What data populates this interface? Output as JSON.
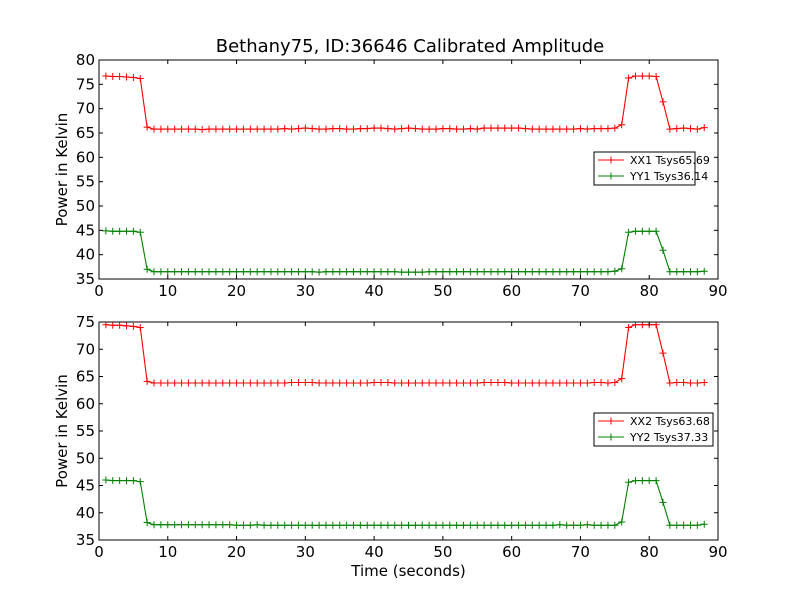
{
  "title": "Bethany75, ID:36646 Calibrated Amplitude",
  "colors": {
    "xx": "#ff0000",
    "yy": "#008000",
    "axis": "#000000"
  },
  "chart_data": [
    {
      "type": "line",
      "ylabel": "Power in Kelvin",
      "xlabel": "",
      "xlim": [
        0,
        90
      ],
      "ylim": [
        35,
        80
      ],
      "xticks": [
        0,
        10,
        20,
        30,
        40,
        50,
        60,
        70,
        80,
        90
      ],
      "yticks": [
        35,
        40,
        45,
        50,
        55,
        60,
        65,
        70,
        75,
        80
      ],
      "legend_position": "center-right",
      "x": [
        1,
        2,
        3,
        4,
        5,
        6,
        7,
        8,
        9,
        10,
        11,
        12,
        13,
        14,
        15,
        16,
        17,
        18,
        19,
        20,
        21,
        22,
        23,
        24,
        25,
        26,
        27,
        28,
        29,
        30,
        31,
        32,
        33,
        34,
        35,
        36,
        37,
        38,
        39,
        40,
        41,
        42,
        43,
        44,
        45,
        46,
        47,
        48,
        49,
        50,
        51,
        52,
        53,
        54,
        55,
        56,
        57,
        58,
        59,
        60,
        61,
        62,
        63,
        64,
        65,
        66,
        67,
        68,
        69,
        70,
        71,
        72,
        73,
        74,
        75,
        76,
        77,
        78,
        79,
        80,
        81,
        82,
        83,
        84,
        85,
        86,
        87,
        88
      ],
      "series": [
        {
          "name": "XX1 Tsys65.69",
          "color": "#ff0000",
          "values": [
            76.7,
            76.6,
            76.6,
            76.5,
            76.4,
            76.2,
            66.2,
            65.8,
            65.8,
            65.8,
            65.8,
            65.8,
            65.8,
            65.8,
            65.7,
            65.8,
            65.8,
            65.8,
            65.8,
            65.8,
            65.8,
            65.8,
            65.8,
            65.8,
            65.8,
            65.8,
            65.9,
            65.8,
            65.9,
            66.0,
            65.9,
            65.8,
            65.8,
            65.9,
            65.9,
            65.8,
            65.8,
            65.9,
            65.9,
            66.0,
            66.0,
            65.9,
            65.8,
            65.9,
            66.0,
            65.9,
            65.8,
            65.8,
            65.8,
            65.9,
            65.9,
            65.8,
            65.8,
            65.9,
            65.8,
            66.0,
            66.0,
            66.0,
            66.0,
            66.0,
            66.0,
            65.9,
            65.8,
            65.8,
            65.8,
            65.8,
            65.8,
            65.8,
            65.8,
            65.9,
            65.8,
            65.9,
            65.9,
            65.9,
            66.0,
            66.7,
            76.3,
            76.7,
            76.7,
            76.7,
            76.6,
            71.4,
            65.8,
            65.9,
            66.0,
            65.9,
            65.8,
            66.1
          ]
        },
        {
          "name": "YY1 Tsys36.14",
          "color": "#008000",
          "values": [
            44.9,
            44.8,
            44.8,
            44.8,
            44.8,
            44.6,
            37.0,
            36.5,
            36.5,
            36.5,
            36.5,
            36.5,
            36.5,
            36.5,
            36.5,
            36.5,
            36.5,
            36.5,
            36.5,
            36.5,
            36.5,
            36.5,
            36.5,
            36.5,
            36.5,
            36.5,
            36.5,
            36.5,
            36.5,
            36.5,
            36.5,
            36.4,
            36.5,
            36.5,
            36.5,
            36.5,
            36.5,
            36.5,
            36.5,
            36.5,
            36.5,
            36.5,
            36.5,
            36.4,
            36.4,
            36.4,
            36.4,
            36.5,
            36.5,
            36.5,
            36.5,
            36.5,
            36.5,
            36.5,
            36.5,
            36.5,
            36.5,
            36.5,
            36.5,
            36.5,
            36.5,
            36.5,
            36.5,
            36.5,
            36.5,
            36.5,
            36.5,
            36.5,
            36.5,
            36.5,
            36.5,
            36.5,
            36.5,
            36.5,
            36.6,
            37.1,
            44.6,
            44.8,
            44.8,
            44.8,
            44.8,
            40.9,
            36.5,
            36.5,
            36.5,
            36.5,
            36.5,
            36.6
          ]
        }
      ]
    },
    {
      "type": "line",
      "ylabel": "Power in Kelvin",
      "xlabel": "Time (seconds)",
      "xlim": [
        0,
        90
      ],
      "ylim": [
        35,
        75
      ],
      "xticks": [
        0,
        10,
        20,
        30,
        40,
        50,
        60,
        70,
        80,
        90
      ],
      "yticks": [
        35,
        40,
        45,
        50,
        55,
        60,
        65,
        70,
        75
      ],
      "legend_position": "center-right",
      "x": [
        1,
        2,
        3,
        4,
        5,
        6,
        7,
        8,
        9,
        10,
        11,
        12,
        13,
        14,
        15,
        16,
        17,
        18,
        19,
        20,
        21,
        22,
        23,
        24,
        25,
        26,
        27,
        28,
        29,
        30,
        31,
        32,
        33,
        34,
        35,
        36,
        37,
        38,
        39,
        40,
        41,
        42,
        43,
        44,
        45,
        46,
        47,
        48,
        49,
        50,
        51,
        52,
        53,
        54,
        55,
        56,
        57,
        58,
        59,
        60,
        61,
        62,
        63,
        64,
        65,
        66,
        67,
        68,
        69,
        70,
        71,
        72,
        73,
        74,
        75,
        76,
        77,
        78,
        79,
        80,
        81,
        82,
        83,
        84,
        85,
        86,
        87,
        88
      ],
      "series": [
        {
          "name": "XX2 Tsys63.68",
          "color": "#ff0000",
          "values": [
            74.5,
            74.4,
            74.4,
            74.3,
            74.2,
            74.0,
            64.1,
            63.8,
            63.8,
            63.8,
            63.8,
            63.8,
            63.8,
            63.8,
            63.8,
            63.8,
            63.8,
            63.8,
            63.8,
            63.8,
            63.8,
            63.8,
            63.8,
            63.8,
            63.8,
            63.8,
            63.8,
            63.9,
            63.9,
            63.9,
            63.9,
            63.8,
            63.8,
            63.8,
            63.8,
            63.8,
            63.8,
            63.8,
            63.8,
            63.9,
            63.9,
            63.9,
            63.8,
            63.8,
            63.8,
            63.8,
            63.8,
            63.8,
            63.8,
            63.8,
            63.8,
            63.8,
            63.8,
            63.8,
            63.8,
            63.9,
            63.9,
            63.9,
            63.9,
            63.8,
            63.8,
            63.8,
            63.8,
            63.8,
            63.8,
            63.8,
            63.8,
            63.8,
            63.8,
            63.8,
            63.8,
            63.9,
            63.9,
            63.8,
            63.9,
            64.6,
            74.0,
            74.5,
            74.5,
            74.5,
            74.5,
            69.3,
            63.8,
            63.9,
            63.9,
            63.8,
            63.8,
            63.9
          ]
        },
        {
          "name": "YY2 Tsys37.33",
          "color": "#008000",
          "values": [
            46.0,
            45.9,
            45.9,
            45.9,
            45.9,
            45.7,
            38.2,
            37.8,
            37.8,
            37.8,
            37.8,
            37.8,
            37.8,
            37.8,
            37.8,
            37.8,
            37.8,
            37.8,
            37.8,
            37.7,
            37.7,
            37.7,
            37.8,
            37.7,
            37.7,
            37.7,
            37.7,
            37.7,
            37.7,
            37.7,
            37.7,
            37.7,
            37.7,
            37.7,
            37.7,
            37.7,
            37.7,
            37.7,
            37.7,
            37.7,
            37.7,
            37.7,
            37.7,
            37.7,
            37.7,
            37.7,
            37.7,
            37.7,
            37.7,
            37.7,
            37.7,
            37.7,
            37.7,
            37.7,
            37.7,
            37.7,
            37.7,
            37.7,
            37.7,
            37.7,
            37.7,
            37.7,
            37.7,
            37.7,
            37.7,
            37.7,
            37.8,
            37.7,
            37.7,
            37.7,
            37.8,
            37.7,
            37.7,
            37.7,
            37.7,
            38.3,
            45.6,
            45.9,
            45.9,
            45.9,
            45.9,
            41.9,
            37.7,
            37.7,
            37.7,
            37.7,
            37.7,
            37.9
          ]
        }
      ]
    }
  ]
}
